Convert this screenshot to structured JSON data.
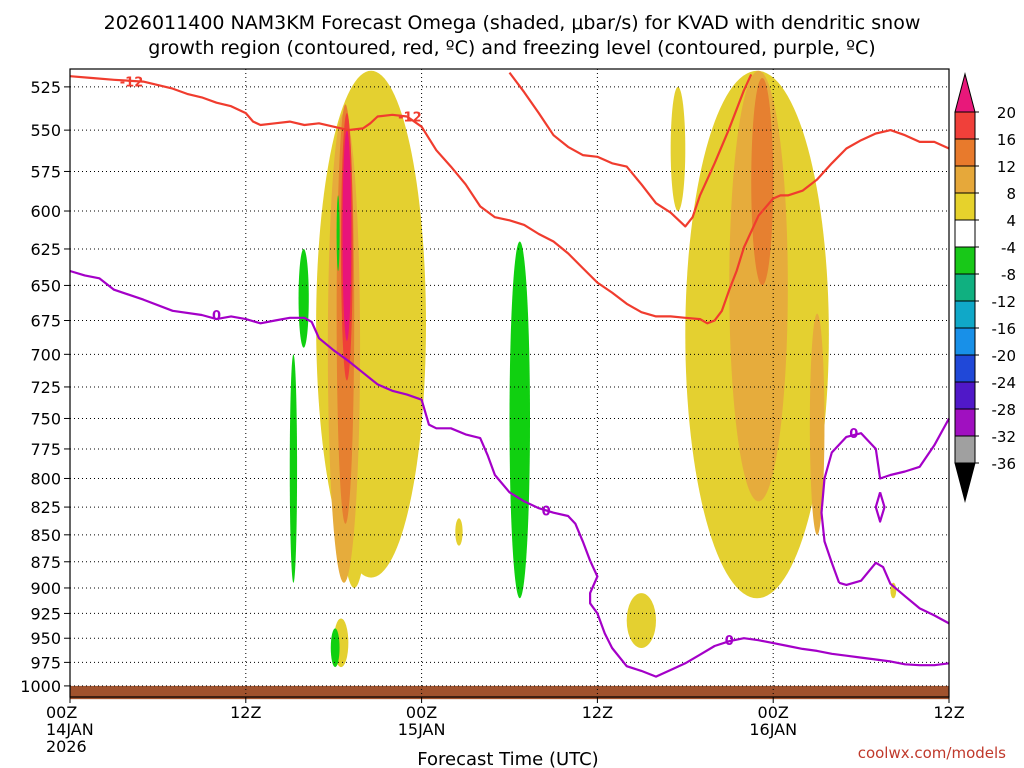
{
  "title": {
    "line1": "2026011400 NAM3KM Forecast Omega (shaded, μbar/s) for KVAD with dendritic snow",
    "line2": "growth region (contoured, red, ºC) and freezing level (contoured, purple, ºC)"
  },
  "credit": "coolwx.com/models",
  "chart_data": {
    "type": "heatmap",
    "title": "2026011400 NAM3KM Forecast Omega (shaded, μbar/s) for KVAD with dendritic snow growth region (contoured, red, ºC) and freezing level (contoured, purple, ºC)",
    "xlabel": "Forecast Time (UTC)",
    "ylabel": "",
    "x_range_hours": [
      0,
      60
    ],
    "y_range_mb": [
      515,
      1012
    ],
    "y_scale": "log",
    "grid": "dotted",
    "x_ticks": [
      {
        "hour": 0,
        "lines": [
          "00Z",
          "14JAN",
          "2026"
        ]
      },
      {
        "hour": 12,
        "lines": [
          "12Z"
        ]
      },
      {
        "hour": 24,
        "lines": [
          "00Z",
          "15JAN"
        ]
      },
      {
        "hour": 36,
        "lines": [
          "12Z"
        ]
      },
      {
        "hour": 48,
        "lines": [
          "00Z",
          "16JAN"
        ]
      },
      {
        "hour": 60,
        "lines": [
          "12Z"
        ]
      }
    ],
    "y_ticks": [
      "525",
      "550",
      "575",
      "600",
      "625",
      "650",
      "675",
      "700",
      "725",
      "750",
      "775",
      "800",
      "825",
      "850",
      "875",
      "900",
      "925",
      "950",
      "975",
      "1000"
    ],
    "colorbar": {
      "labels": [
        "20",
        "16",
        "12",
        "8",
        "4",
        "-4",
        "-8",
        "-12",
        "-16",
        "-20",
        "-24",
        "-28",
        "-32",
        "-36"
      ],
      "colors": [
        "#e8187a",
        "#f0403a",
        "#e87a2c",
        "#e6a83a",
        "#e6d22c",
        "#ffffff",
        "#18c818",
        "#10b080",
        "#10a8c8",
        "#1890e8",
        "#2048d8",
        "#5018c8",
        "#a010c0",
        "#a0a0a0",
        "#000000"
      ]
    },
    "colors": {
      "omega_4": "#e4d030",
      "omega_8": "#e6ac3c",
      "omega_12": "#e68030",
      "omega_16": "#f04038",
      "omega_20": "#e8147a",
      "omega_neg4": "#10d010",
      "dgz_contour": "#f03c2e",
      "freezing_contour": "#a400c8",
      "terrain": "#a0522d"
    },
    "contour_labels": {
      "dgz": "-12",
      "freezing": "0"
    },
    "series": [
      {
        "kind": "contour",
        "color_key": "dgz_contour",
        "label": "-12",
        "points": [
          [
            0,
            519
          ],
          [
            1.5,
            520
          ],
          [
            3,
            521
          ],
          [
            5,
            522
          ],
          [
            7,
            526
          ],
          [
            8,
            529
          ],
          [
            9,
            531
          ],
          [
            10,
            534
          ],
          [
            11,
            536
          ],
          [
            12,
            540
          ],
          [
            12.5,
            545
          ],
          [
            13,
            547
          ],
          [
            14,
            546
          ],
          [
            15,
            545
          ],
          [
            16,
            547
          ],
          [
            17,
            546
          ],
          [
            18,
            548
          ],
          [
            19,
            550
          ],
          [
            20,
            549
          ],
          [
            20.5,
            546
          ],
          [
            21,
            542
          ],
          [
            22,
            541
          ],
          [
            23,
            542
          ]
        ]
      },
      {
        "kind": "contour",
        "color_key": "dgz_contour",
        "label": "",
        "points": [
          [
            23,
            542
          ],
          [
            24,
            548
          ],
          [
            25,
            562
          ],
          [
            26,
            572
          ],
          [
            27,
            583
          ],
          [
            28,
            597
          ],
          [
            29,
            604
          ],
          [
            30,
            606
          ],
          [
            31,
            609
          ],
          [
            32,
            615
          ],
          [
            33,
            620
          ],
          [
            34,
            628
          ],
          [
            35,
            638
          ],
          [
            36,
            648
          ],
          [
            37,
            655
          ],
          [
            38,
            663
          ],
          [
            39,
            669
          ],
          [
            40,
            672
          ],
          [
            41,
            672
          ],
          [
            42,
            673
          ],
          [
            43,
            674
          ],
          [
            43.5,
            677
          ],
          [
            44,
            675
          ],
          [
            44.5,
            668
          ],
          [
            45,
            653
          ],
          [
            45.5,
            640
          ],
          [
            46,
            624
          ],
          [
            47,
            603
          ],
          [
            48,
            592
          ],
          [
            48.5,
            590
          ],
          [
            49,
            590
          ],
          [
            50,
            587
          ],
          [
            51,
            580
          ],
          [
            52,
            570
          ],
          [
            53,
            561
          ],
          [
            54,
            556
          ],
          [
            55,
            552
          ],
          [
            56,
            550
          ],
          [
            57,
            553
          ],
          [
            58,
            557
          ],
          [
            59,
            557
          ],
          [
            60,
            561
          ]
        ]
      },
      {
        "kind": "contour",
        "color_key": "dgz_contour",
        "label": "",
        "points": [
          [
            30,
            517
          ],
          [
            31,
            528
          ],
          [
            32,
            540
          ],
          [
            33,
            553
          ],
          [
            34,
            560
          ],
          [
            35,
            565
          ],
          [
            36,
            566
          ],
          [
            37,
            570
          ],
          [
            38,
            572
          ],
          [
            39,
            583
          ],
          [
            40,
            595
          ],
          [
            41,
            601
          ],
          [
            42,
            610
          ],
          [
            42.5,
            604
          ],
          [
            43,
            590
          ],
          [
            44,
            570
          ],
          [
            45,
            549
          ],
          [
            46,
            527
          ],
          [
            46.5,
            518
          ]
        ]
      },
      {
        "kind": "contour",
        "color_key": "freezing_contour",
        "label": "0",
        "points": [
          [
            0,
            640
          ],
          [
            1,
            643
          ],
          [
            2,
            645
          ],
          [
            3,
            653
          ],
          [
            5,
            660
          ],
          [
            7,
            668
          ],
          [
            9,
            671
          ],
          [
            10,
            674
          ],
          [
            11,
            672
          ],
          [
            12,
            674
          ],
          [
            13,
            677
          ],
          [
            14,
            675
          ],
          [
            15,
            673
          ],
          [
            16,
            673
          ],
          [
            16.5,
            676
          ],
          [
            17,
            688
          ],
          [
            18,
            697
          ],
          [
            19,
            705
          ],
          [
            20,
            714
          ],
          [
            21,
            723
          ],
          [
            22,
            728
          ],
          [
            23,
            731
          ],
          [
            24,
            735
          ],
          [
            24.5,
            755
          ],
          [
            25,
            758
          ],
          [
            26,
            758
          ],
          [
            27,
            763
          ],
          [
            28,
            766
          ],
          [
            28.5,
            780
          ],
          [
            29,
            797
          ],
          [
            30,
            812
          ],
          [
            31,
            820
          ],
          [
            32,
            826
          ],
          [
            33,
            830
          ],
          [
            34,
            833
          ],
          [
            34.5,
            840
          ],
          [
            35,
            856
          ],
          [
            35.5,
            874
          ],
          [
            36,
            889
          ],
          [
            35.5,
            905
          ],
          [
            35.5,
            915
          ],
          [
            36,
            925
          ],
          [
            36.5,
            945
          ],
          [
            37,
            960
          ],
          [
            38,
            979
          ],
          [
            39,
            984
          ],
          [
            40,
            990
          ],
          [
            41,
            983
          ],
          [
            42,
            976
          ],
          [
            43,
            967
          ],
          [
            44,
            958
          ],
          [
            45,
            953
          ],
          [
            46,
            950
          ],
          [
            47,
            952
          ],
          [
            48,
            955
          ],
          [
            49,
            958
          ],
          [
            50,
            961
          ],
          [
            51,
            963
          ],
          [
            52,
            966
          ],
          [
            53,
            968
          ],
          [
            54,
            970
          ],
          [
            55,
            972
          ],
          [
            56,
            974
          ],
          [
            57,
            977
          ],
          [
            58,
            978
          ],
          [
            59,
            978
          ],
          [
            60,
            976
          ]
        ]
      },
      {
        "kind": "contour",
        "color_key": "freezing_contour",
        "label": "0",
        "points": [
          [
            52.5,
            895
          ],
          [
            52,
            876
          ],
          [
            51.5,
            856
          ],
          [
            51.3,
            830
          ],
          [
            51.5,
            800
          ],
          [
            52,
            778
          ],
          [
            53,
            765
          ],
          [
            54,
            762
          ],
          [
            55,
            775
          ],
          [
            55.3,
            800
          ],
          [
            56,
            797
          ],
          [
            57,
            794
          ],
          [
            58,
            790
          ],
          [
            59,
            772
          ],
          [
            60,
            750
          ]
        ]
      },
      {
        "kind": "contour",
        "color_key": "freezing_contour",
        "label": "",
        "points": [
          [
            52.5,
            895
          ],
          [
            53,
            897
          ],
          [
            54,
            893
          ],
          [
            55,
            876
          ],
          [
            55.5,
            880
          ],
          [
            56,
            896
          ],
          [
            57,
            908
          ],
          [
            58,
            920
          ],
          [
            59,
            927
          ],
          [
            60,
            935
          ]
        ]
      },
      {
        "kind": "contour",
        "color_key": "freezing_contour",
        "label": "",
        "points": [
          [
            55.3,
            812
          ],
          [
            55,
            825
          ],
          [
            55.3,
            838
          ],
          [
            55.6,
            825
          ],
          [
            55.3,
            812
          ]
        ]
      }
    ],
    "regions": [
      {
        "level": 4,
        "hours": [
          16.8,
          24.3
        ],
        "mb": [
          516,
          890
        ]
      },
      {
        "level": 4,
        "hours": [
          18,
          20.8
        ],
        "mb": [
          535,
          900
        ]
      },
      {
        "level": 8,
        "hours": [
          17.6,
          19.8
        ],
        "mb": [
          540,
          895
        ]
      },
      {
        "level": 12,
        "hours": [
          18.2,
          19.4
        ],
        "mb": [
          535,
          840
        ]
      },
      {
        "level": 16,
        "hours": [
          18.5,
          19.3
        ],
        "mb": [
          540,
          720
        ]
      },
      {
        "level": 20,
        "hours": [
          18.6,
          19.2
        ],
        "mb": [
          550,
          690
        ]
      },
      {
        "level": 4,
        "hours": [
          42,
          51.8
        ],
        "mb": [
          516,
          910
        ]
      },
      {
        "level": 8,
        "hours": [
          45,
          49
        ],
        "mb": [
          516,
          820
        ]
      },
      {
        "level": 12,
        "hours": [
          46.5,
          48
        ],
        "mb": [
          520,
          650
        ]
      },
      {
        "level": 8,
        "hours": [
          50.5,
          51.5
        ],
        "mb": [
          670,
          850
        ]
      },
      {
        "level": 4,
        "hours": [
          41,
          42
        ],
        "mb": [
          525,
          600
        ]
      },
      {
        "level": 4,
        "hours": [
          38,
          40
        ],
        "mb": [
          905,
          960
        ]
      },
      {
        "level": 4,
        "hours": [
          18,
          19
        ],
        "mb": [
          930,
          980
        ]
      },
      {
        "level": 4,
        "hours": [
          26.3,
          26.8
        ],
        "mb": [
          835,
          860
        ]
      },
      {
        "level": 4,
        "hours": [
          56,
          56.4
        ],
        "mb": [
          895,
          910
        ]
      },
      {
        "level": -4,
        "hours": [
          15.6,
          16.3
        ],
        "mb": [
          625,
          695
        ]
      },
      {
        "level": -4,
        "hours": [
          15,
          15.5
        ],
        "mb": [
          700,
          895
        ]
      },
      {
        "level": -4,
        "hours": [
          30,
          31.4
        ],
        "mb": [
          620,
          910
        ]
      },
      {
        "level": -4,
        "hours": [
          17.8,
          18.4
        ],
        "mb": [
          940,
          980
        ]
      },
      {
        "level": -4,
        "hours": [
          18.2,
          18.4
        ],
        "mb": [
          590,
          640
        ]
      }
    ],
    "terrain_mb": [
      1000,
      1010
    ]
  }
}
